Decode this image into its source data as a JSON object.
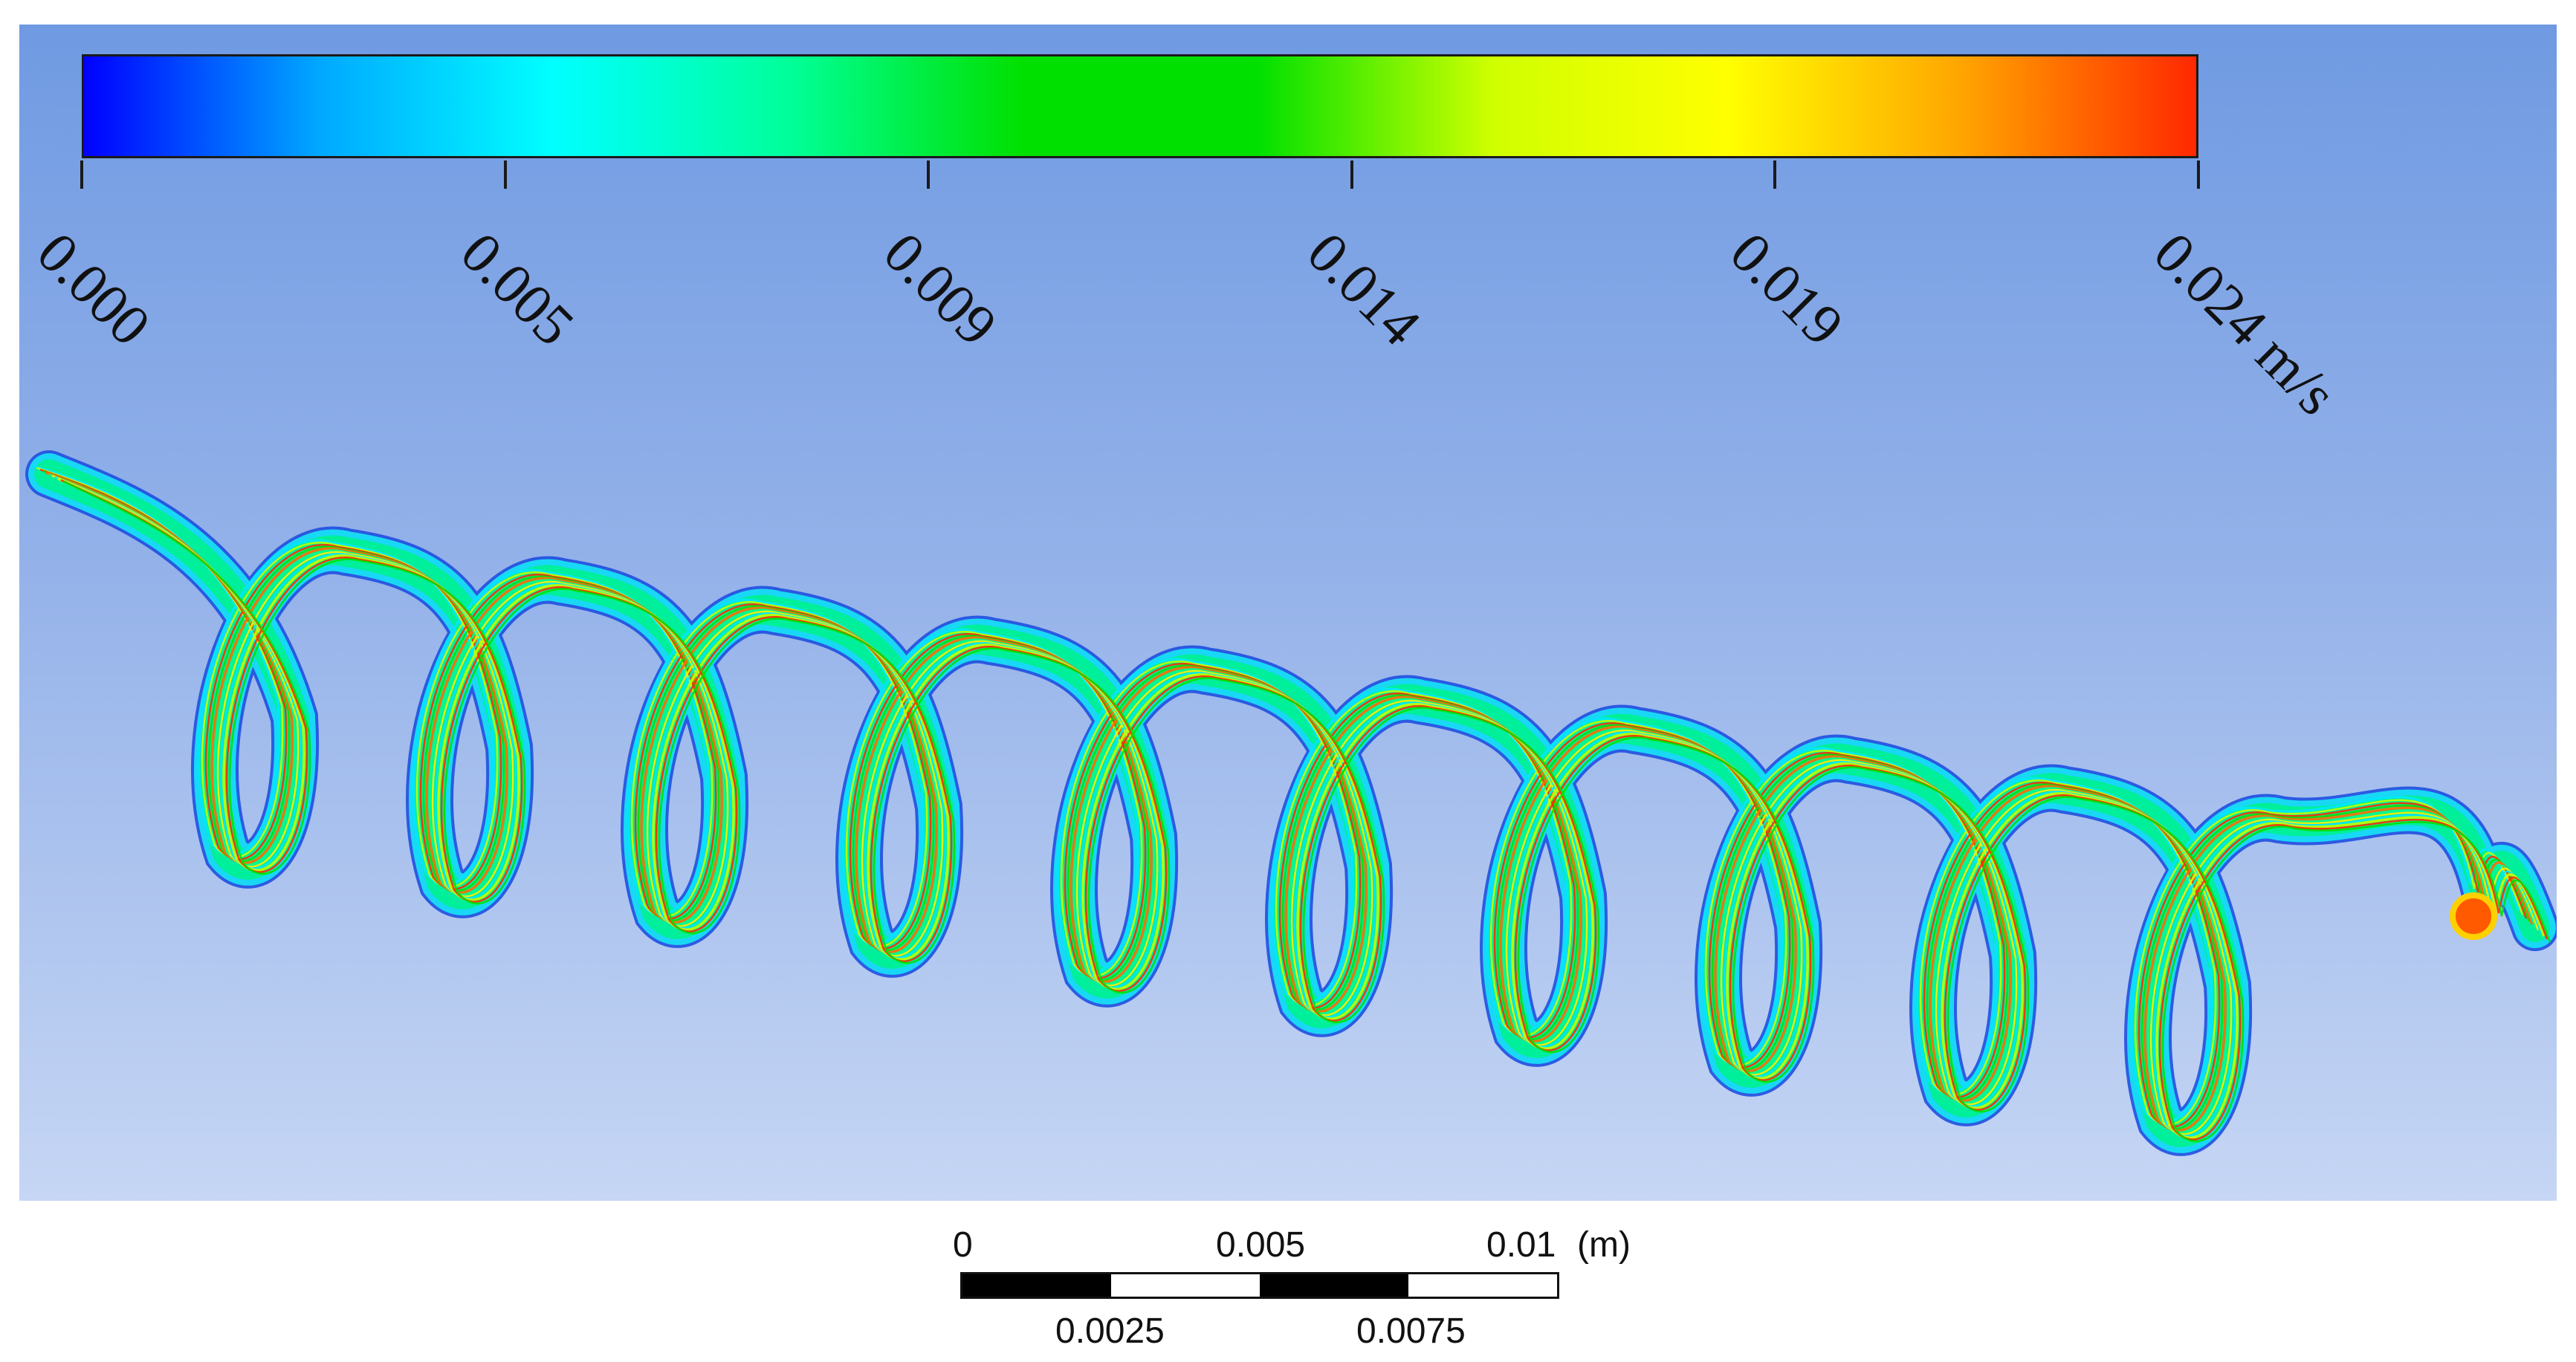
{
  "legend": {
    "gradient": [
      "#0000ff",
      "#00a8ff",
      "#00ffff",
      "#00ff9a",
      "#00e000",
      "#00e000",
      "#cfff00",
      "#ffff00",
      "#ffa500",
      "#ff2800"
    ],
    "ticks": [
      "0.000",
      "0.005",
      "0.009",
      "0.014",
      "0.019",
      "0.024 m/s"
    ]
  },
  "scale_bar": {
    "top_labels": [
      "0",
      "0.005",
      "0.01"
    ],
    "unit": "(m)",
    "bottom_labels": [
      "0.0025",
      "0.0075"
    ],
    "segment_colors": [
      "#000000",
      "#ffffff",
      "#000000",
      "#ffffff"
    ]
  },
  "streamline_colors": [
    "#00e5ff",
    "#00ff88",
    "#00e000",
    "#c8ff00",
    "#ffee00",
    "#ff6a00",
    "#ff2a00",
    "#1f4fe0"
  ]
}
